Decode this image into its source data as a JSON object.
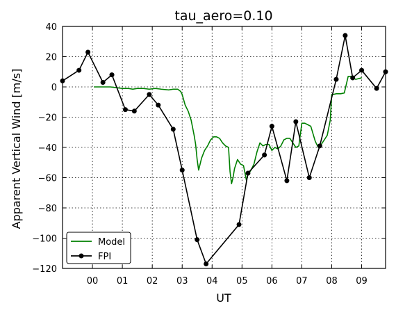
{
  "chart_data": {
    "type": "line",
    "title": "tau_aero=0.10",
    "xlabel": "UT",
    "ylabel": "Apparent Vertical Wind [m/s]",
    "xlim": [
      -1.0,
      9.8
    ],
    "ylim": [
      -120,
      40
    ],
    "x_ticks": [
      0,
      1,
      2,
      3,
      4,
      5,
      6,
      7,
      8,
      9
    ],
    "x_tick_labels": [
      "00",
      "01",
      "02",
      "03",
      "04",
      "05",
      "06",
      "07",
      "08",
      "09"
    ],
    "y_ticks": [
      -120,
      -100,
      -80,
      -60,
      -40,
      -20,
      0,
      20,
      40
    ],
    "y_tick_labels": [
      "−120",
      "−100",
      "−80",
      "−60",
      "−40",
      "−20",
      "0",
      "20",
      "40"
    ],
    "grid": true,
    "legend_position": "lower-left",
    "series": [
      {
        "name": "Model",
        "color": "#008000",
        "marker": false,
        "x": [
          0.05,
          0.3,
          0.6,
          0.8,
          1.0,
          1.2,
          1.35,
          1.5,
          1.7,
          1.9,
          2.1,
          2.3,
          2.55,
          2.7,
          2.85,
          2.95,
          3.0,
          3.1,
          3.2,
          3.3,
          3.4,
          3.45,
          3.5,
          3.55,
          3.65,
          3.75,
          3.85,
          3.95,
          4.05,
          4.15,
          4.25,
          4.35,
          4.45,
          4.55,
          4.6,
          4.65,
          4.7,
          4.75,
          4.85,
          4.95,
          5.05,
          5.15,
          5.2,
          5.3,
          5.4,
          5.5,
          5.6,
          5.7,
          5.8,
          5.9,
          6.0,
          6.1,
          6.2,
          6.3,
          6.4,
          6.5,
          6.6,
          6.7,
          6.8,
          6.9,
          7.0,
          7.1,
          7.2,
          7.3,
          7.45,
          7.55,
          7.65,
          7.75,
          7.85,
          7.95,
          8.0,
          8.05,
          8.15,
          8.3,
          8.42,
          8.55,
          8.65,
          8.8,
          9.0
        ],
        "y": [
          0,
          0,
          0,
          -0.5,
          -1,
          -1,
          -1.5,
          -1,
          -1,
          -1.5,
          -1,
          -1.5,
          -2,
          -1.5,
          -1.5,
          -3,
          -5,
          -12,
          -16,
          -22,
          -32,
          -38,
          -48,
          -55,
          -47,
          -42,
          -39,
          -35,
          -33,
          -33,
          -34,
          -37,
          -39,
          -40,
          -56,
          -64,
          -60,
          -54,
          -48,
          -51,
          -52,
          -62,
          -58,
          -55,
          -51,
          -43,
          -37,
          -39,
          -38,
          -38,
          -42,
          -40,
          -41,
          -39,
          -35,
          -34,
          -34,
          -37,
          -40,
          -39,
          -24,
          -24,
          -25,
          -26,
          -36,
          -40,
          -38,
          -35,
          -32,
          -22,
          -5,
          -5,
          -4.5,
          -4.5,
          -4,
          7,
          7,
          5,
          6
        ]
      },
      {
        "name": "FPI",
        "color": "#000000",
        "marker": true,
        "x": [
          -1.0,
          -0.45,
          -0.15,
          0.35,
          0.65,
          1.1,
          1.4,
          1.9,
          2.2,
          2.7,
          3.0,
          3.5,
          3.8,
          4.9,
          5.2,
          5.75,
          6.0,
          6.5,
          6.8,
          7.25,
          7.6,
          8.15,
          8.45,
          8.7,
          9.0,
          9.5,
          9.8
        ],
        "y": [
          4,
          11,
          23,
          3,
          8,
          -15,
          -16,
          -5,
          -12,
          -28,
          -55,
          -101,
          -117,
          -91,
          -57,
          -45,
          -26,
          -62,
          -23,
          -60,
          -39,
          5,
          34,
          6,
          11,
          -1,
          10
        ]
      }
    ]
  }
}
